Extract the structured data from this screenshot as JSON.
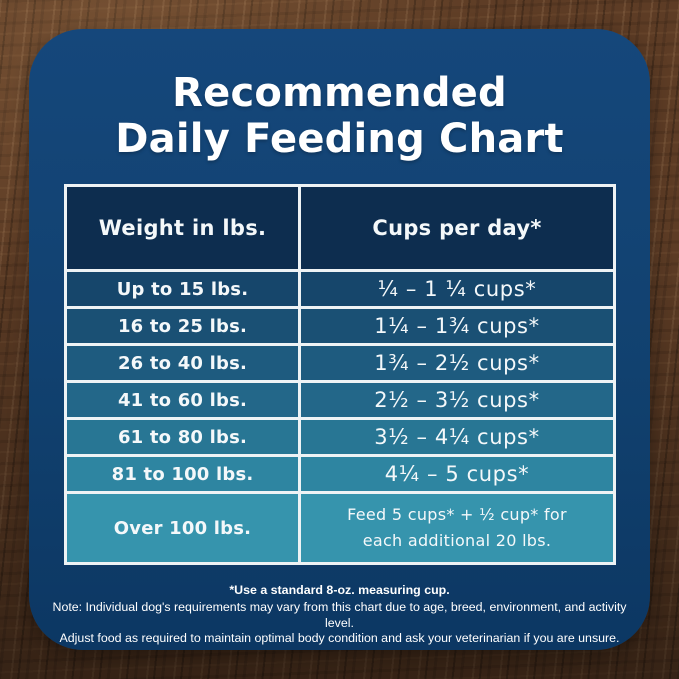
{
  "card": {
    "title_line1": "Recommended",
    "title_line2": "Daily Feeding Chart",
    "background_color": "#11416f",
    "border_color": "#eef3f5",
    "text_color": "#ffffff"
  },
  "table": {
    "headers": [
      "Weight in lbs.",
      "Cups per day*"
    ],
    "header_bg": "#0d2d4f",
    "rows": [
      {
        "weight": "Up to 15 lbs.",
        "cups": "¼ – 1 ¼ cups*",
        "color": "#16466b"
      },
      {
        "weight": "16 to 25 lbs.",
        "cups": "1¼ – 1¾  cups*",
        "color": "#1a5074"
      },
      {
        "weight": "26 to 40 lbs.",
        "cups": "1¾ – 2½ cups*",
        "color": "#1e5b7f"
      },
      {
        "weight": "41 to 60 lbs.",
        "cups": "2½ – 3½ cups*",
        "color": "#236789"
      },
      {
        "weight": "61 to 80 lbs.",
        "cups": "3½ – 4¼ cups*",
        "color": "#287694"
      },
      {
        "weight": "81 to 100 lbs.",
        "cups": "4¼ – 5 cups*",
        "color": "#2e85a1"
      },
      {
        "weight": "Over 100 lbs.",
        "cups_line1": "Feed 5 cups* + ½ cup* for",
        "cups_line2": "each additional 20 lbs.",
        "color": "#3694ad"
      }
    ]
  },
  "footnotes": {
    "line1": "*Use a standard 8-oz. measuring cup.",
    "line2": "Note: Individual dog's requirements may vary from this chart due to age, breed, environment, and activity level.",
    "line3": "Adjust food as required to maintain optimal body condition and ask your veterinarian if you are unsure."
  },
  "chart_data": {
    "type": "table",
    "title": "Recommended Daily Feeding Chart",
    "columns": [
      "Weight in lbs.",
      "Cups per day*"
    ],
    "rows": [
      [
        "Up to 15 lbs.",
        "¼ – 1 ¼ cups*"
      ],
      [
        "16 to 25 lbs.",
        "1¼ – 1¾ cups*"
      ],
      [
        "26 to 40 lbs.",
        "1¾ – 2½ cups*"
      ],
      [
        "41 to 60 lbs.",
        "2½ – 3½ cups*"
      ],
      [
        "61 to 80 lbs.",
        "3½ – 4¼ cups*"
      ],
      [
        "81 to 100 lbs.",
        "4¼ – 5 cups*"
      ],
      [
        "Over 100 lbs.",
        "Feed 5 cups* + ½ cup* for each additional 20 lbs."
      ]
    ],
    "notes": [
      "*Use a standard 8-oz. measuring cup.",
      "Note: Individual dog's requirements may vary from this chart due to age, breed, environment, and activity level.",
      "Adjust food as required to maintain optimal body condition and ask your veterinarian if you are unsure."
    ]
  }
}
